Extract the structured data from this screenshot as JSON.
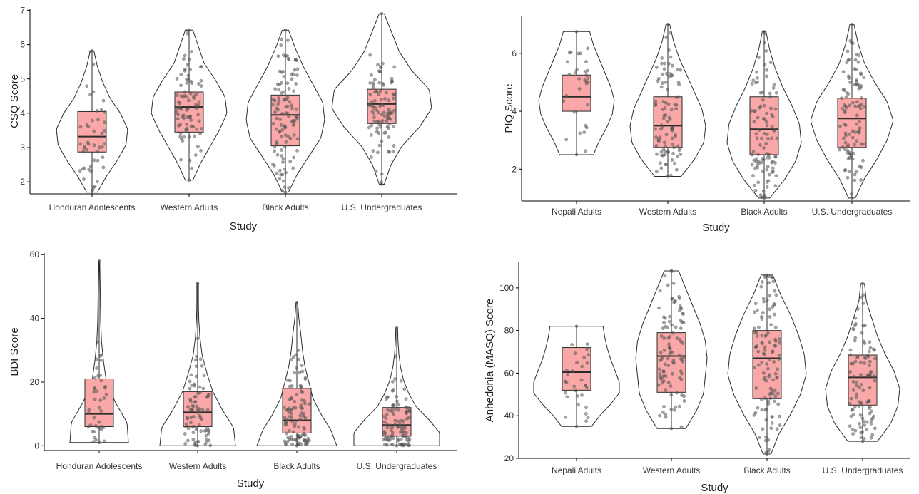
{
  "chart_data": [
    {
      "type": "violin",
      "xlabel": "Study",
      "ylabel": "CSQ Score",
      "ylim": [
        1.65,
        7.05
      ],
      "yticks": [
        2,
        3,
        4,
        5,
        6,
        7
      ],
      "grid": false,
      "categories": [
        "Honduran Adolescents",
        "Western Adults",
        "Black Adults",
        "U.S. Undergraduates"
      ],
      "groups": [
        {
          "min": 1.7,
          "q1": 2.87,
          "median": 3.32,
          "q3": 4.05,
          "max": 5.82,
          "n": 45,
          "dens": [
            0.15,
            0.4,
            0.7,
            0.95,
            1.0,
            0.8,
            0.5,
            0.3,
            0.15,
            0.05
          ]
        },
        {
          "min": 2.05,
          "q1": 3.45,
          "median": 4.18,
          "q3": 4.62,
          "max": 6.42,
          "n": 85,
          "dens": [
            0.1,
            0.3,
            0.55,
            0.8,
            1.0,
            0.95,
            0.7,
            0.4,
            0.25,
            0.1
          ]
        },
        {
          "min": 1.7,
          "q1": 3.05,
          "median": 3.95,
          "q3": 4.53,
          "max": 6.42,
          "n": 110,
          "dens": [
            0.08,
            0.3,
            0.6,
            0.9,
            1.0,
            0.95,
            0.7,
            0.45,
            0.25,
            0.08
          ]
        },
        {
          "min": 1.93,
          "q1": 3.7,
          "median": 4.27,
          "q3": 4.7,
          "max": 6.9,
          "n": 100,
          "dens": [
            0.05,
            0.18,
            0.4,
            0.75,
            1.0,
            0.95,
            0.6,
            0.35,
            0.2,
            0.05
          ]
        }
      ]
    },
    {
      "type": "violin",
      "xlabel": "Study",
      "ylabel": "PIQ Score",
      "ylim": [
        0.9,
        7.3
      ],
      "yticks": [
        2,
        4,
        6
      ],
      "grid": false,
      "categories": [
        "Nepali Adults",
        "Western Adults",
        "Black Adults",
        "U.S. Undergraduates"
      ],
      "groups": [
        {
          "min": 2.5,
          "q1": 4.0,
          "median": 4.5,
          "q3": 5.25,
          "max": 6.75,
          "n": 30,
          "dens": [
            0.45,
            0.6,
            0.8,
            0.95,
            1.0,
            0.9,
            0.75,
            0.6,
            0.45,
            0.35
          ]
        },
        {
          "min": 1.75,
          "q1": 2.75,
          "median": 3.5,
          "q3": 4.5,
          "max": 7.0,
          "n": 95,
          "dens": [
            0.35,
            0.7,
            0.95,
            1.0,
            0.9,
            0.7,
            0.5,
            0.3,
            0.15,
            0.05
          ]
        },
        {
          "min": 1.0,
          "q1": 2.5,
          "median": 3.38,
          "q3": 4.5,
          "max": 6.75,
          "n": 100,
          "dens": [
            0.15,
            0.55,
            0.85,
            1.0,
            0.95,
            0.75,
            0.5,
            0.3,
            0.15,
            0.05
          ]
        },
        {
          "min": 1.0,
          "q1": 2.75,
          "median": 3.75,
          "q3": 4.45,
          "max": 7.0,
          "n": 100,
          "dens": [
            0.08,
            0.3,
            0.6,
            0.85,
            1.0,
            0.85,
            0.55,
            0.3,
            0.15,
            0.05
          ]
        }
      ]
    },
    {
      "type": "violin",
      "xlabel": "Study",
      "ylabel": "BDI Score",
      "ylim": [
        -1.5,
        60.5
      ],
      "yticks": [
        0,
        20,
        40,
        60
      ],
      "grid": false,
      "categories": [
        "Honduran Adolescents",
        "Western Adults",
        "Black Adults",
        "U.S. Undergraduates"
      ],
      "groups": [
        {
          "min": 1,
          "q1": 6,
          "median": 10,
          "q3": 21,
          "max": 58,
          "n": 40,
          "dens": [
            1.0,
            0.95,
            0.55,
            0.25,
            0.15,
            0.08,
            0.05,
            0.04,
            0.03,
            0.02
          ]
        },
        {
          "min": 0,
          "q1": 6,
          "median": 10.5,
          "q3": 17,
          "max": 51,
          "n": 80,
          "dens": [
            1.0,
            0.95,
            0.65,
            0.4,
            0.25,
            0.12,
            0.06,
            0.03,
            0.02,
            0.02
          ]
        },
        {
          "min": 0,
          "q1": 4,
          "median": 8,
          "q3": 18,
          "max": 45,
          "n": 105,
          "dens": [
            1.0,
            0.85,
            0.6,
            0.4,
            0.3,
            0.2,
            0.14,
            0.1,
            0.05,
            0.02
          ]
        },
        {
          "min": 0,
          "q1": 3,
          "median": 6.5,
          "q3": 12,
          "max": 37,
          "n": 100,
          "dens": [
            1.0,
            1.0,
            0.75,
            0.45,
            0.28,
            0.16,
            0.09,
            0.05,
            0.03,
            0.02
          ]
        }
      ]
    },
    {
      "type": "violin",
      "xlabel": "Study",
      "ylabel": "Anhedonia (MASQ) Score",
      "ylim": [
        20,
        112
      ],
      "yticks": [
        20,
        40,
        60,
        80,
        100
      ],
      "grid": false,
      "categories": [
        "Nepali Adults",
        "Western Adults",
        "Black Adults",
        "U.S. Undergraduates"
      ],
      "groups": [
        {
          "min": 35,
          "q1": 52,
          "median": 60.5,
          "q3": 72,
          "max": 82,
          "n": 30,
          "dens": [
            0.35,
            0.55,
            0.8,
            1.0,
            1.0,
            0.9,
            0.8,
            0.72,
            0.66,
            0.62
          ]
        },
        {
          "min": 34,
          "q1": 51,
          "median": 68,
          "q3": 79,
          "max": 108,
          "n": 100,
          "dens": [
            0.4,
            0.7,
            0.9,
            0.95,
            1.0,
            0.95,
            0.8,
            0.6,
            0.4,
            0.2
          ]
        },
        {
          "min": 22,
          "q1": 48,
          "median": 67,
          "q3": 80,
          "max": 106,
          "n": 115,
          "dens": [
            0.1,
            0.3,
            0.6,
            0.85,
            1.0,
            0.95,
            0.8,
            0.6,
            0.35,
            0.15
          ]
        },
        {
          "min": 28,
          "q1": 45,
          "median": 58,
          "q3": 68.5,
          "max": 102,
          "n": 100,
          "dens": [
            0.4,
            0.75,
            0.95,
            1.0,
            0.85,
            0.6,
            0.4,
            0.25,
            0.1,
            0.05
          ]
        }
      ]
    }
  ],
  "colors": {
    "box_fill": "#f9a7a7",
    "box_stroke": "#2b2b2b",
    "violin_stroke": "#2b2b2b",
    "point": "#555555",
    "axis": "#000000"
  }
}
